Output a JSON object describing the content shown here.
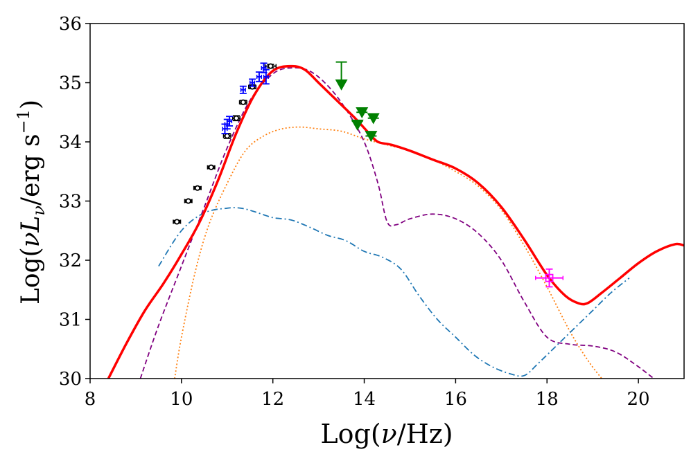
{
  "chart_data": {
    "type": "line",
    "title": "",
    "xlabel": "Log(ν/Hz)",
    "ylabel": "Log(νLν/erg s⁻¹)",
    "xlim": [
      8,
      21
    ],
    "ylim": [
      30,
      36
    ],
    "xticks": [
      8,
      10,
      12,
      14,
      16,
      18,
      20
    ],
    "yticks": [
      30,
      31,
      32,
      33,
      34,
      35,
      36
    ],
    "xtick_labels": [
      "8",
      "10",
      "12",
      "14",
      "16",
      "18",
      "20"
    ],
    "ytick_labels": [
      "30",
      "31",
      "32",
      "33",
      "34",
      "35",
      "36"
    ],
    "grid": false,
    "legend": "none",
    "series": [
      {
        "name": "total",
        "style": "solid",
        "color": "#ff0000",
        "x": [
          8.4,
          8.8,
          9.2,
          9.6,
          10.0,
          10.4,
          10.8,
          11.2,
          11.6,
          12.0,
          12.4,
          12.7,
          13.0,
          13.4,
          13.8,
          14.1,
          14.3,
          14.6,
          15.0,
          15.5,
          16.0,
          16.5,
          17.0,
          17.5,
          18.0,
          18.4,
          18.7,
          18.9,
          19.2,
          19.6,
          20.0,
          20.4,
          20.8,
          21.0
        ],
        "y": [
          30.0,
          30.6,
          31.15,
          31.6,
          32.1,
          32.65,
          33.35,
          34.15,
          34.8,
          35.2,
          35.28,
          35.22,
          35.0,
          34.7,
          34.4,
          34.15,
          34.0,
          33.95,
          33.85,
          33.7,
          33.55,
          33.3,
          32.9,
          32.35,
          31.75,
          31.4,
          31.27,
          31.28,
          31.45,
          31.7,
          31.95,
          32.15,
          32.27,
          32.25
        ]
      },
      {
        "name": "component-dashed",
        "style": "dashed",
        "color": "#800080",
        "x": [
          9.1,
          9.5,
          10.0,
          10.5,
          11.0,
          11.5,
          12.0,
          12.4,
          12.8,
          13.2,
          13.6,
          14.0,
          14.3,
          14.5,
          14.7,
          15.0,
          15.5,
          16.0,
          16.5,
          17.0,
          17.5,
          18.0,
          18.5,
          19.0,
          19.5,
          20.0,
          20.5
        ],
        "y": [
          30.0,
          30.9,
          31.9,
          32.9,
          33.9,
          34.7,
          35.15,
          35.25,
          35.2,
          34.95,
          34.55,
          34.0,
          33.3,
          32.65,
          32.6,
          32.7,
          32.78,
          32.7,
          32.45,
          32.0,
          31.3,
          30.7,
          30.58,
          30.55,
          30.45,
          30.2,
          29.9
        ]
      },
      {
        "name": "component-dotted",
        "style": "dotted",
        "color": "#ff7f0e",
        "x": [
          9.85,
          10.0,
          10.3,
          10.6,
          11.0,
          11.4,
          11.8,
          12.2,
          12.6,
          13.0,
          13.5,
          14.0,
          14.5,
          15.0,
          15.5,
          16.0,
          16.5,
          17.0,
          17.5,
          18.0,
          18.5,
          18.9,
          19.2
        ],
        "y": [
          30.0,
          30.7,
          31.8,
          32.6,
          33.3,
          33.85,
          34.1,
          34.22,
          34.25,
          34.22,
          34.18,
          34.05,
          33.95,
          33.85,
          33.7,
          33.5,
          33.25,
          32.85,
          32.25,
          31.55,
          30.8,
          30.3,
          30.0
        ]
      },
      {
        "name": "component-dashdot",
        "style": "dashdot",
        "color": "#1f77b4",
        "x": [
          9.5,
          10.0,
          10.5,
          11.0,
          11.3,
          11.6,
          12.0,
          12.4,
          12.8,
          13.2,
          13.6,
          14.0,
          14.4,
          14.8,
          15.2,
          15.6,
          16.0,
          16.4,
          16.8,
          17.2,
          17.5,
          17.8,
          18.2,
          18.6,
          19.0,
          19.4,
          19.8
        ],
        "y": [
          31.9,
          32.5,
          32.8,
          32.88,
          32.88,
          32.82,
          32.72,
          32.68,
          32.56,
          32.42,
          32.33,
          32.15,
          32.05,
          31.85,
          31.4,
          31.0,
          30.7,
          30.4,
          30.2,
          30.08,
          30.05,
          30.25,
          30.55,
          30.85,
          31.15,
          31.45,
          31.7
        ]
      }
    ],
    "observations": [
      {
        "name": "black-circles",
        "color": "#000000",
        "marker": "circle",
        "points": [
          {
            "x": 9.9,
            "y": 32.65,
            "xerr": 0.08,
            "yerr": 0.02
          },
          {
            "x": 10.15,
            "y": 33.0,
            "xerr": 0.08,
            "yerr": 0.02
          },
          {
            "x": 10.35,
            "y": 33.22,
            "xerr": 0.08,
            "yerr": 0.02
          },
          {
            "x": 10.65,
            "y": 33.57,
            "xerr": 0.08,
            "yerr": 0.02
          },
          {
            "x": 11.0,
            "y": 34.1,
            "xerr": 0.08,
            "yerr": 0.04
          },
          {
            "x": 11.2,
            "y": 34.4,
            "xerr": 0.08,
            "yerr": 0.04
          },
          {
            "x": 11.35,
            "y": 34.67,
            "xerr": 0.08,
            "yerr": 0.03
          },
          {
            "x": 11.55,
            "y": 34.93,
            "xerr": 0.08,
            "yerr": 0.03
          },
          {
            "x": 11.95,
            "y": 35.28,
            "xerr": 0.12,
            "yerr": 0.03
          }
        ]
      },
      {
        "name": "blue-points",
        "color": "#0000ff",
        "marker": "none",
        "points": [
          {
            "x": 10.95,
            "y": 34.22,
            "xerr": 0.05,
            "yerr": 0.08
          },
          {
            "x": 11.0,
            "y": 34.3,
            "xerr": 0.05,
            "yerr": 0.08
          },
          {
            "x": 11.05,
            "y": 34.35,
            "xerr": 0.05,
            "yerr": 0.08
          },
          {
            "x": 11.35,
            "y": 34.88,
            "xerr": 0.05,
            "yerr": 0.06
          },
          {
            "x": 11.55,
            "y": 35.0,
            "xerr": 0.05,
            "yerr": 0.06
          },
          {
            "x": 11.7,
            "y": 35.1,
            "xerr": 0.05,
            "yerr": 0.08
          },
          {
            "x": 11.8,
            "y": 35.25,
            "xerr": 0.05,
            "yerr": 0.08
          },
          {
            "x": 11.85,
            "y": 35.1,
            "xerr": 0.05,
            "yerr": 0.12
          }
        ]
      },
      {
        "name": "green-upper-limits",
        "color": "#008000",
        "marker": "triangle-down",
        "points": [
          {
            "x": 13.5,
            "y": 34.95,
            "top": 35.35
          },
          {
            "x": 13.85,
            "y": 34.27,
            "top": 34.35
          },
          {
            "x": 13.95,
            "y": 34.48,
            "top": 34.5
          },
          {
            "x": 14.2,
            "y": 34.38,
            "top": 34.4
          },
          {
            "x": 14.15,
            "y": 34.08,
            "top": 34.1
          }
        ]
      },
      {
        "name": "xray-point",
        "color": "#ff00ff",
        "marker": "square-open",
        "points": [
          {
            "x": 18.05,
            "y": 31.7,
            "xerr": 0.3,
            "yerr": 0.15
          }
        ]
      }
    ]
  }
}
